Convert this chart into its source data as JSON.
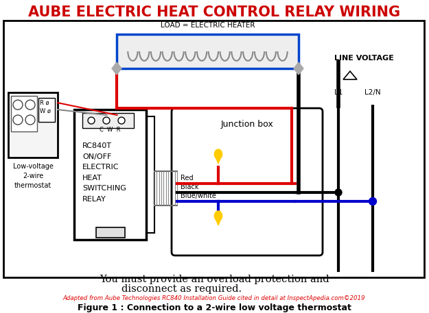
{
  "title": "AUBE ELECTRIC HEAT CONTROL RELAY WIRING",
  "title_color": "#cc0000",
  "title_fontsize": 15,
  "bg_color": "#ffffff",
  "border_color": "#000000",
  "load_label": "LOAD = ELECTRIC HEATER",
  "line_voltage_label": "LINE VOLTAGE",
  "junction_box_label": "Junction box",
  "relay_label": "RC840T\nON/OFF\nELECTRIC\nHEAT\nSWITCHING\nRELAY",
  "thermostat_label": "Low-voltage\n2-wire\nthermostat",
  "wire_labels": [
    "Red",
    "Black",
    "Blue/white"
  ],
  "l1_label": "L1",
  "l2n_label": "L2/N",
  "cwr_label": "C  W  R",
  "rw_label": "R ø\nW ø",
  "bottom_text1": "You must provide an overload protection and",
  "bottom_text2": "disconnect as required.",
  "citation": "Adapted from Aube Technologies RC840 Installation Guide cited in detail at InspectApedia.com©2019",
  "figure_caption": "Figure 1 : Connection to a 2-wire low voltage thermostat",
  "red_color": "#dd0000",
  "black_color": "#000000",
  "blue_color": "#0000cc",
  "yellow_color": "#ffcc00",
  "heater_blue": "#0044cc",
  "wire_lw": 3.0
}
